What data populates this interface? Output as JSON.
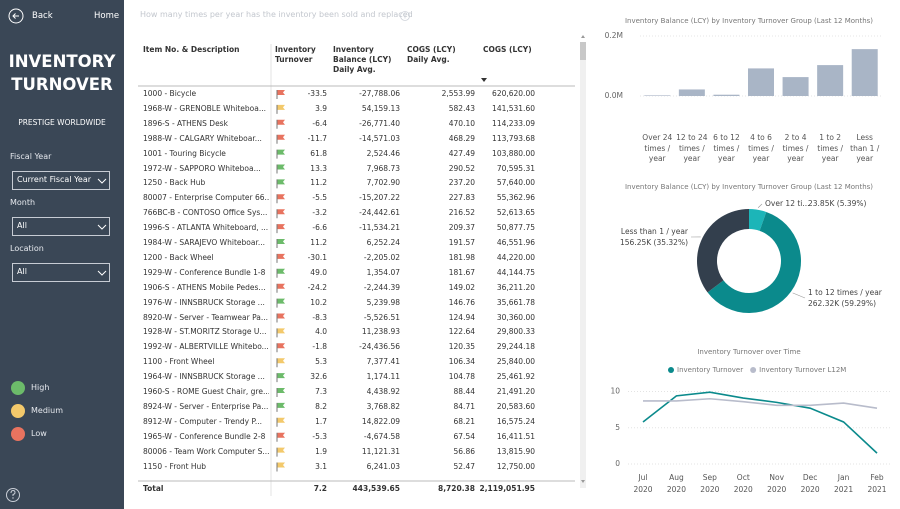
{
  "sidebar": {
    "back": "Back",
    "home": "Home",
    "title": "INVENTORY TURNOVER",
    "company": "PRESTIGE WORLDWIDE",
    "filters": [
      {
        "label": "Fiscal Year",
        "value": "Current Fiscal Year"
      },
      {
        "label": "Month",
        "value": "All"
      },
      {
        "label": "Location",
        "value": "All"
      }
    ],
    "legend": [
      {
        "label": "High",
        "color": "#6cbb6a"
      },
      {
        "label": "Medium",
        "color": "#f3c96b"
      },
      {
        "label": "Low",
        "color": "#e8735f"
      }
    ]
  },
  "hint": "How many times per year has the inventory been sold and replaced",
  "table": {
    "columns": [
      "Item No. & Description",
      "Inventory Turnover",
      "Inventory Balance (LCY) Daily Avg.",
      "COGS (LCY) Daily Avg.",
      "COGS (LCY)"
    ],
    "rows": [
      {
        "item": "1000 - Bicycle",
        "flag": "#e8735f",
        "values": [
          "-33.5",
          "-27,788.06",
          "2,553.99",
          "620,620.00"
        ]
      },
      {
        "item": "1968-W - GRENOBLE Whiteboa...",
        "flag": "#f3c96b",
        "values": [
          "3.9",
          "54,159.13",
          "582.43",
          "141,531.60"
        ]
      },
      {
        "item": "1896-S - ATHENS Desk",
        "flag": "#e8735f",
        "values": [
          "-6.4",
          "-26,771.40",
          "470.10",
          "114,233.09"
        ]
      },
      {
        "item": "1988-W - CALGARY Whiteboar...",
        "flag": "#e8735f",
        "values": [
          "-11.7",
          "-14,571.03",
          "468.29",
          "113,793.68"
        ]
      },
      {
        "item": "1001 - Touring Bicycle",
        "flag": "#6cbb6a",
        "values": [
          "61.8",
          "2,524.46",
          "427.49",
          "103,880.00"
        ]
      },
      {
        "item": "1972-W - SAPPORO Whiteboa...",
        "flag": "#6cbb6a",
        "values": [
          "13.3",
          "7,968.73",
          "290.52",
          "70,595.31"
        ]
      },
      {
        "item": "1250 - Back Hub",
        "flag": "#6cbb6a",
        "values": [
          "11.2",
          "7,702.90",
          "237.20",
          "57,640.00"
        ]
      },
      {
        "item": "80007 - Enterprise Computer 66...",
        "flag": "#e8735f",
        "values": [
          "-5.5",
          "-15,207.22",
          "227.83",
          "55,362.96"
        ]
      },
      {
        "item": "766BC-B - CONTOSO Office Sys...",
        "flag": "#e8735f",
        "values": [
          "-3.2",
          "-24,442.61",
          "216.52",
          "52,613.65"
        ]
      },
      {
        "item": "1996-S - ATLANTA Whiteboard, ...",
        "flag": "#e8735f",
        "values": [
          "-6.6",
          "-11,534.21",
          "209.37",
          "50,877.75"
        ]
      },
      {
        "item": "1984-W - SARAJEVO Whiteboar...",
        "flag": "#6cbb6a",
        "values": [
          "11.2",
          "6,252.24",
          "191.57",
          "46,551.96"
        ]
      },
      {
        "item": "1200 - Back Wheel",
        "flag": "#e8735f",
        "values": [
          "-30.1",
          "-2,205.02",
          "181.98",
          "44,220.00"
        ]
      },
      {
        "item": "1929-W - Conference Bundle 1-8",
        "flag": "#6cbb6a",
        "values": [
          "49.0",
          "1,354.07",
          "181.67",
          "44,144.75"
        ]
      },
      {
        "item": "1906-S - ATHENS Mobile Pedes...",
        "flag": "#e8735f",
        "values": [
          "-24.2",
          "-2,244.39",
          "149.02",
          "36,211.20"
        ]
      },
      {
        "item": "1976-W - INNSBRUCK Storage ...",
        "flag": "#6cbb6a",
        "values": [
          "10.2",
          "5,239.98",
          "146.76",
          "35,661.78"
        ]
      },
      {
        "item": "8920-W - Server - Teamwear Pa...",
        "flag": "#e8735f",
        "values": [
          "-8.3",
          "-5,526.51",
          "124.94",
          "30,360.00"
        ]
      },
      {
        "item": "1928-W - ST.MORITZ Storage U...",
        "flag": "#f3c96b",
        "values": [
          "4.0",
          "11,238.93",
          "122.64",
          "29,800.33"
        ]
      },
      {
        "item": "1992-W - ALBERTVILLE Whitebo...",
        "flag": "#e8735f",
        "values": [
          "-1.8",
          "-24,436.56",
          "120.35",
          "29,244.18"
        ]
      },
      {
        "item": "1100 - Front Wheel",
        "flag": "#f3c96b",
        "values": [
          "5.3",
          "7,377.41",
          "106.34",
          "25,840.00"
        ]
      },
      {
        "item": "1964-W - INNSBRUCK Storage ...",
        "flag": "#6cbb6a",
        "values": [
          "32.6",
          "1,174.11",
          "104.78",
          "25,461.92"
        ]
      },
      {
        "item": "1960-S - ROME Guest Chair, gre...",
        "flag": "#6cbb6a",
        "values": [
          "7.3",
          "4,438.92",
          "88.44",
          "21,491.20"
        ]
      },
      {
        "item": "8924-W - Server - Enterprise Pa...",
        "flag": "#6cbb6a",
        "values": [
          "8.2",
          "3,768.82",
          "84.71",
          "20,583.60"
        ]
      },
      {
        "item": "8912-W - Computer - Trendy P...",
        "flag": "#f3c96b",
        "values": [
          "1.7",
          "14,822.09",
          "68.21",
          "16,575.24"
        ]
      },
      {
        "item": "1965-W - Conference Bundle 2-8",
        "flag": "#e8735f",
        "values": [
          "-5.3",
          "-4,674.58",
          "67.54",
          "16,411.51"
        ]
      },
      {
        "item": "80006 - Team Work Computer S...",
        "flag": "#f3c96b",
        "values": [
          "1.9",
          "11,121.31",
          "56.86",
          "13,815.90"
        ]
      },
      {
        "item": "1150 - Front Hub",
        "flag": "#f3c96b",
        "values": [
          "3.1",
          "6,241.03",
          "52.47",
          "12,750.00"
        ]
      }
    ],
    "total": {
      "label": "Total",
      "values": [
        "7.2",
        "443,539.65",
        "8,720.38",
        "2,119,051.95"
      ]
    }
  },
  "chart_data": [
    {
      "type": "bar",
      "title": "Inventory Balance (LCY) by Inventory Turnover Group (Last 12 Months)",
      "categories": [
        "Over 24 times / year",
        "12 to 24 times / year",
        "6 to 12 times / year",
        "4 to 6 times / year",
        "2 to 4 times / year",
        "1 to 2 times / year",
        "Less than 1 / year"
      ],
      "values": [
        2000,
        21850,
        4320,
        92000,
        63000,
        103000,
        156250
      ],
      "color": "#a9b5c6",
      "ylim": [
        0,
        220000
      ],
      "yticks": [
        {
          "value": 0,
          "label": "0.0M"
        },
        {
          "value": 200000,
          "label": "0.2M"
        }
      ],
      "grid": true
    },
    {
      "type": "donut",
      "title": "Inventory Balance (LCY) by Inventory Turnover Group (Last 12 Months)",
      "categories": [
        "Over 12 ti...",
        "1 to 12 times / year",
        "Less than 1 / year"
      ],
      "values": [
        23850,
        262320,
        156250
      ],
      "value_labels": [
        "23.85K (5.39%)",
        "262.32K (59.29%)",
        "156.25K (35.32%)"
      ],
      "colors": [
        "#1cb5b8",
        "#0b8a8c",
        "#333f4d"
      ]
    },
    {
      "type": "line",
      "title": "Inventory Turnover over Time",
      "x": [
        "Jul 2020",
        "Aug 2020",
        "Sep 2020",
        "Oct 2020",
        "Nov 2020",
        "Dec 2020",
        "Jan 2021",
        "Feb 2021"
      ],
      "series": [
        {
          "name": "Inventory Turnover",
          "color": "#0b8a8c",
          "values": [
            5.8,
            9.4,
            9.9,
            9.1,
            8.5,
            7.7,
            5.8,
            1.5
          ]
        },
        {
          "name": "Inventory Turnover L12M",
          "color": "#b8bccb",
          "values": [
            8.7,
            8.7,
            9.0,
            8.6,
            8.1,
            8.1,
            8.4,
            7.7
          ]
        }
      ],
      "ylim": [
        0,
        12
      ],
      "yticks": [
        0,
        5,
        10
      ],
      "grid": true
    }
  ]
}
